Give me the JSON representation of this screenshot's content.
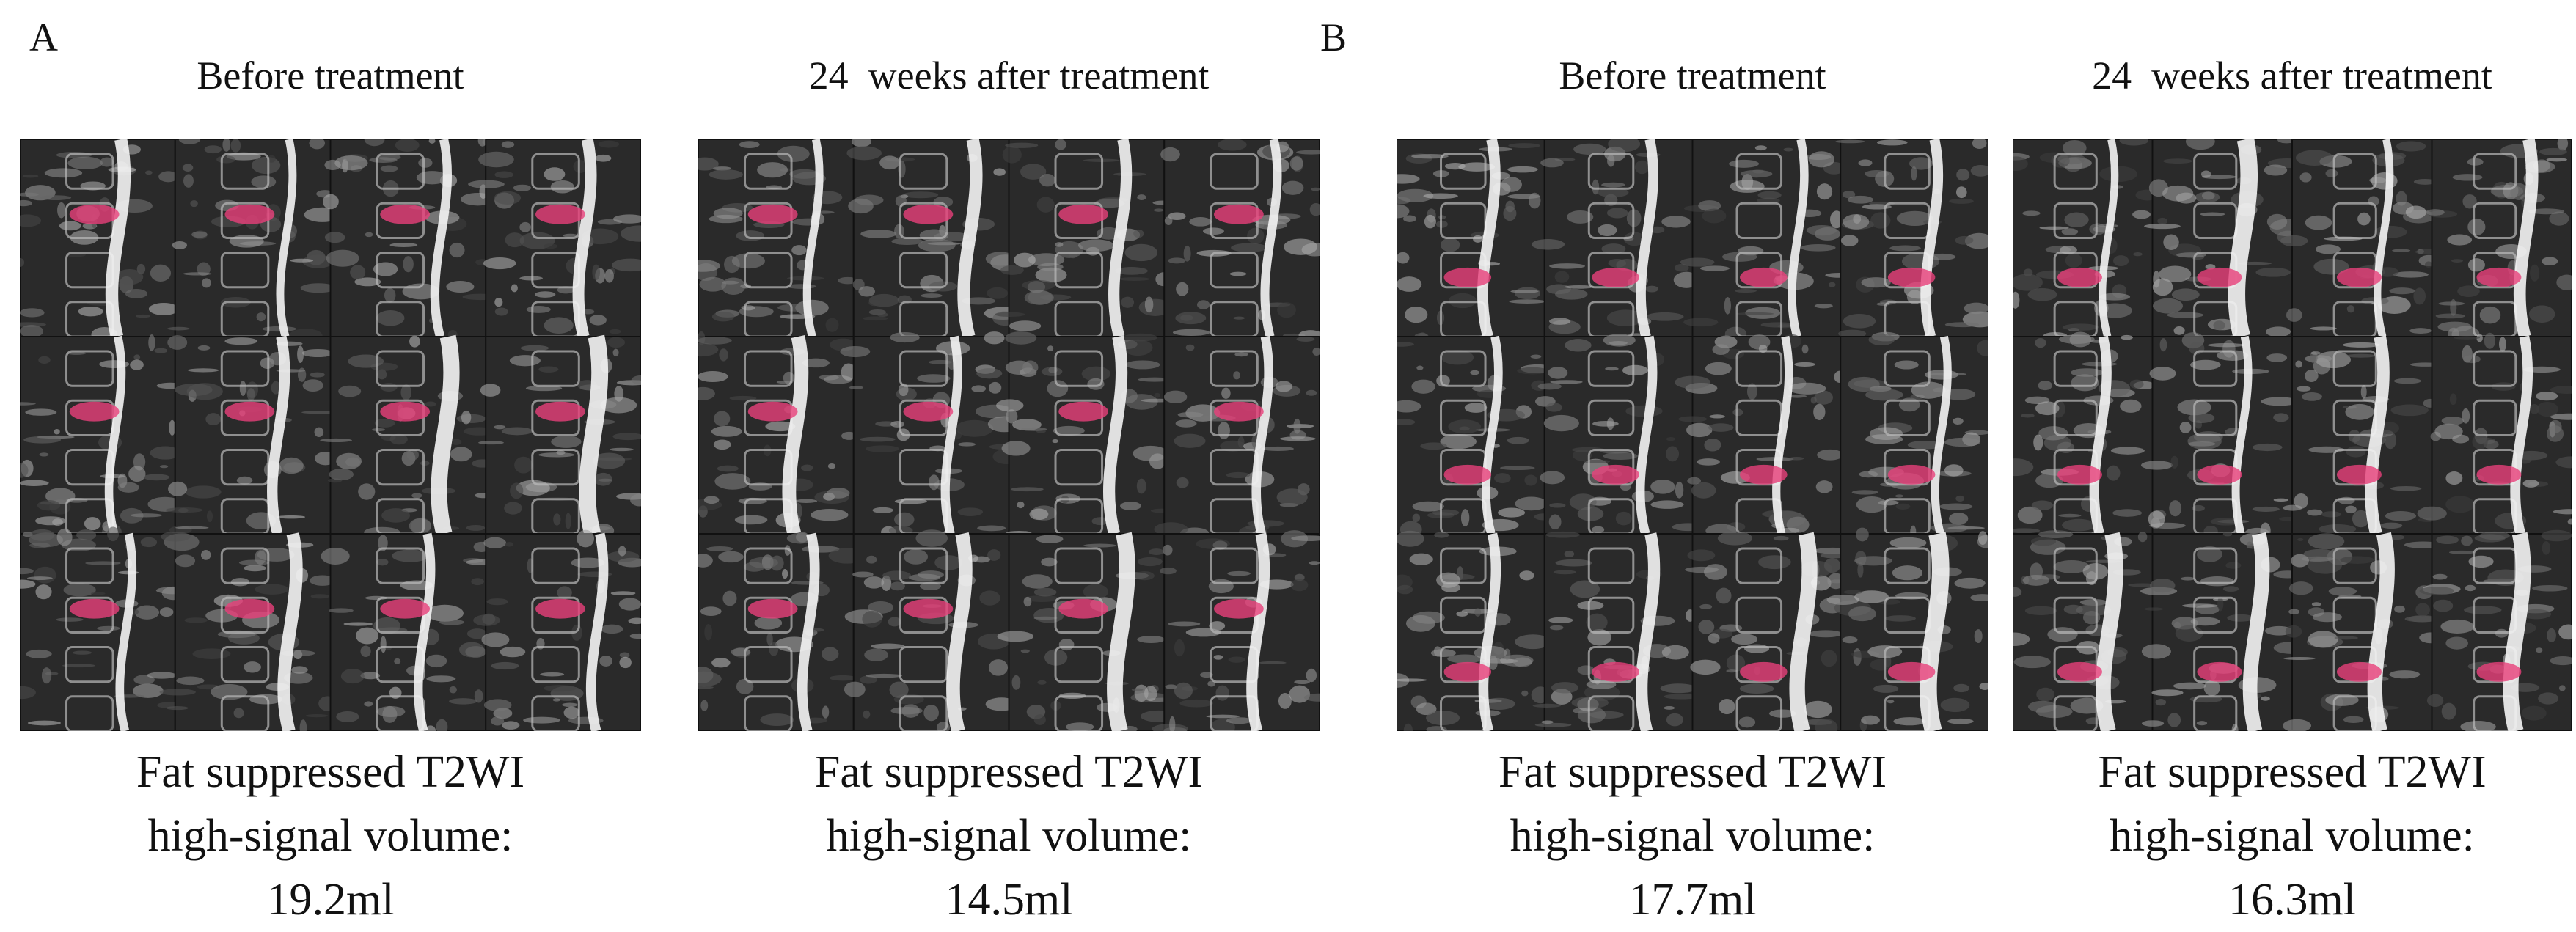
{
  "panels": [
    {
      "label": "A",
      "columns": [
        {
          "title": "Before treatment",
          "caption": [
            "Fat suppressed T2WI",
            "high-signal volume:",
            "19.2ml"
          ]
        },
        {
          "title": "24  weeks after treatment",
          "caption": [
            "Fat suppressed T2WI",
            "high-signal volume:",
            "14.5ml"
          ]
        }
      ]
    },
    {
      "label": "B",
      "columns": [
        {
          "title": "Before treatment",
          "caption": [
            "Fat suppressed T2WI",
            "high-signal volume:",
            "17.7ml"
          ]
        },
        {
          "title": "24  weeks after treatment",
          "caption": [
            "Fat suppressed T2WI",
            "high-signal volume:",
            "16.3ml"
          ]
        }
      ]
    }
  ]
}
